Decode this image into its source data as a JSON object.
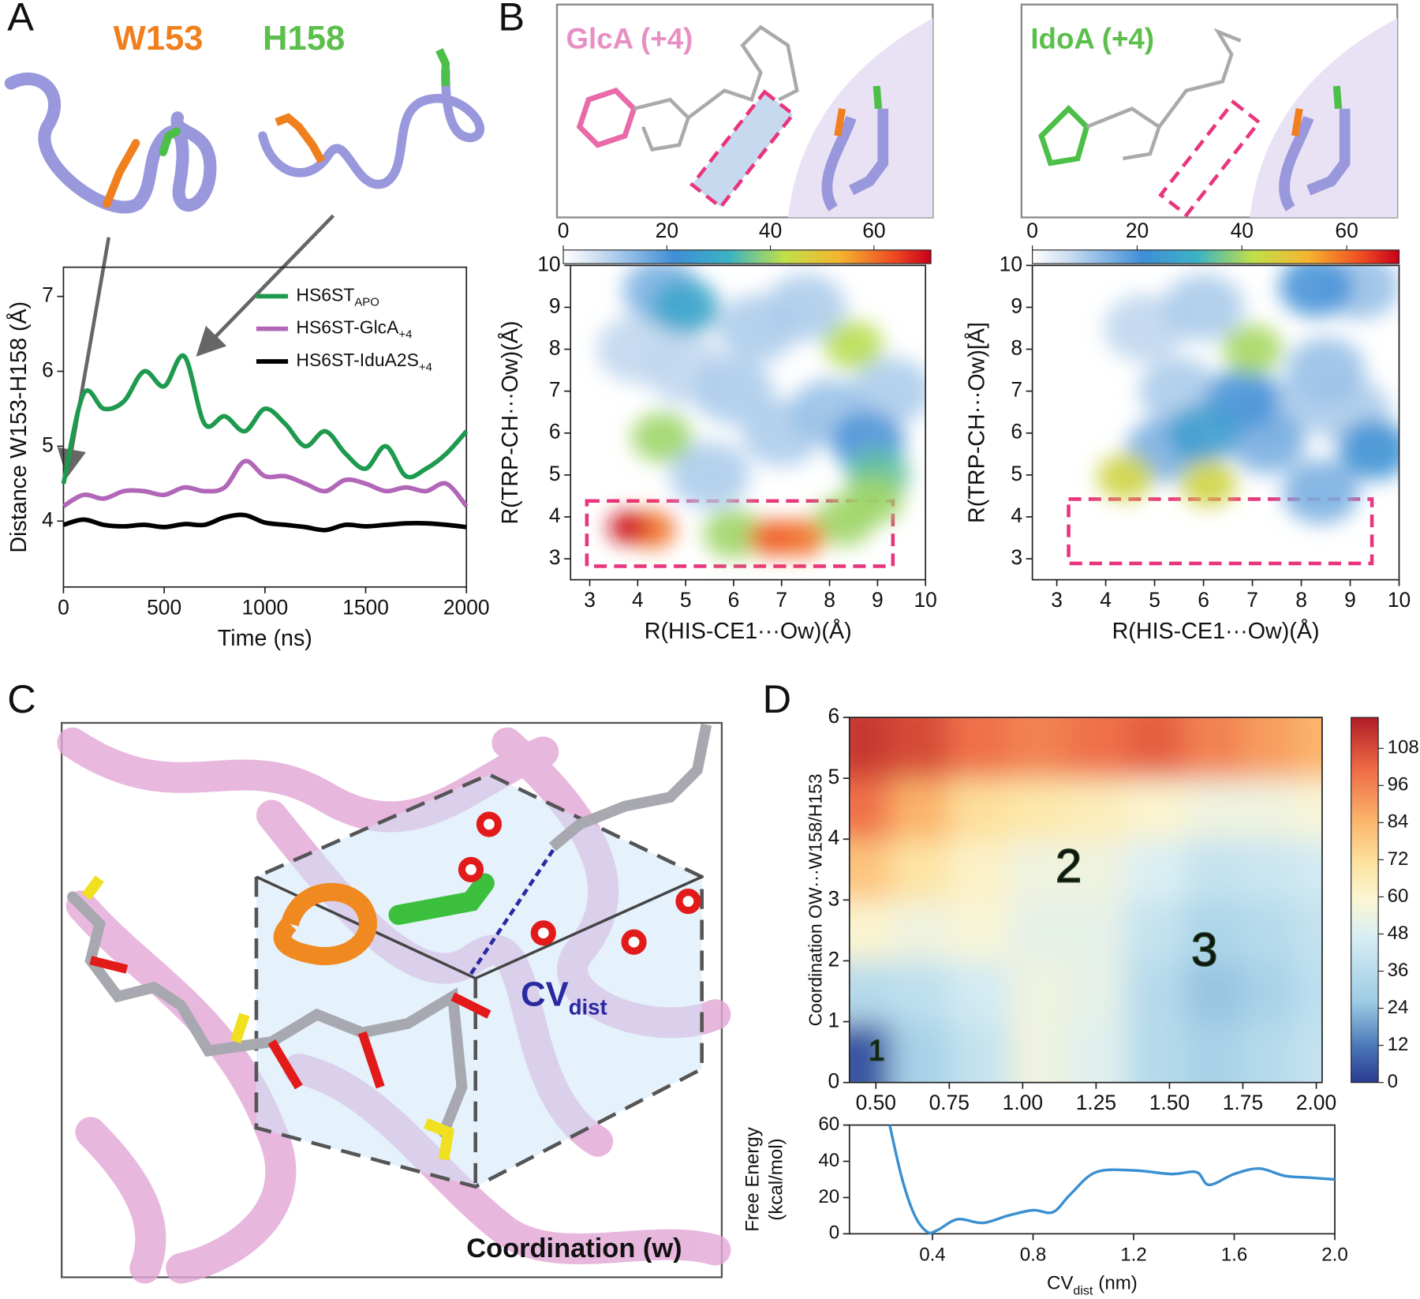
{
  "figure": {
    "panel_labels": [
      "A",
      "B",
      "C",
      "D"
    ],
    "residues": [
      "W153",
      "H158"
    ],
    "ligands": [
      "GlcA (+4)",
      "IdoA (+4)"
    ],
    "cv": {
      "text": "CV",
      "sub": "dist"
    },
    "coordination_label": "Coordination (w)"
  },
  "chart_data": [
    {
      "type": "line",
      "y_label": "Distance W153-H158 (Å)",
      "x_label": "Time (ns)",
      "legend": "upper right",
      "x": [
        0,
        100,
        200,
        300,
        400,
        500,
        600,
        700,
        800,
        900,
        1000,
        1100,
        1200,
        1300,
        1400,
        1500,
        1600,
        1700,
        1800,
        1900,
        2000
      ],
      "series": [
        {
          "name": "HS6ST",
          "name_sub": "APO",
          "color": "#1e9a4e",
          "values": [
            4.5,
            5.7,
            5.5,
            5.6,
            6.0,
            5.8,
            6.2,
            5.3,
            5.4,
            5.2,
            5.5,
            5.3,
            5.0,
            5.2,
            4.9,
            4.7,
            5.0,
            4.6,
            4.7,
            4.9,
            5.2
          ]
        },
        {
          "name": "HS6ST-GlcA",
          "name_sub": "+4",
          "color": "#b266b8",
          "values": [
            4.2,
            4.35,
            4.3,
            4.4,
            4.4,
            4.35,
            4.45,
            4.4,
            4.45,
            4.8,
            4.6,
            4.6,
            4.5,
            4.4,
            4.55,
            4.5,
            4.4,
            4.45,
            4.4,
            4.5,
            4.2
          ]
        },
        {
          "name": "HS6ST-IduA2S",
          "name_sub": "+4",
          "color": "#000000",
          "values": [
            3.95,
            4.02,
            3.95,
            3.93,
            3.95,
            3.92,
            3.96,
            3.95,
            4.05,
            4.08,
            3.98,
            3.95,
            3.92,
            3.88,
            3.95,
            3.93,
            3.95,
            3.97,
            3.97,
            3.95,
            3.92
          ]
        }
      ],
      "xlim": [
        0,
        2000
      ],
      "xticks": [
        0,
        500,
        1000,
        1500,
        2000
      ],
      "ylim": [
        3.12,
        7.39
      ],
      "yticks": [
        4,
        5,
        6,
        7
      ]
    },
    {
      "type": "density",
      "x_label": "R(HIS-CE1···Ow)(Å)",
      "y_label": "R(TRP-CH···Ow)(Å)",
      "colormap": "jet",
      "clim": [
        0,
        71
      ],
      "cticks": [
        0,
        20,
        40,
        60
      ],
      "points": {
        "x": [
          6.0,
          7.0,
          6.5,
          8.0,
          5.5,
          7.5,
          4.0,
          9.3,
          5.0,
          4.5,
          8.8,
          6.0,
          8.3,
          5.0,
          9.0,
          8.9,
          4.5,
          8.5,
          4.3,
          7.4,
          6.8,
          3.8
        ],
        "y": [
          7.0,
          6.0,
          8.5,
          6.5,
          5.0,
          9.0,
          8.0,
          7.0,
          7.5,
          9.4,
          5.8,
          3.6,
          3.9,
          9.0,
          5.0,
          4.4,
          5.9,
          8.1,
          3.7,
          3.5,
          3.5,
          3.75
        ],
        "values": [
          10,
          10,
          10,
          12,
          10,
          10,
          8,
          10,
          8,
          15,
          20,
          40,
          40,
          28,
          35,
          40,
          40,
          42,
          60,
          60,
          62,
          70
        ]
      },
      "xlim": [
        2.6,
        10
      ],
      "xticks": [
        3,
        4,
        5,
        6,
        7,
        8,
        9,
        10
      ],
      "ylim": [
        2.5,
        10
      ],
      "yticks": [
        3,
        4,
        5,
        6,
        7,
        8,
        9,
        10
      ]
    },
    {
      "type": "density",
      "x_label": "R(HIS-CE1···Ow)(Å)",
      "y_label": "R(TRP-CH···Ow)[Å]",
      "colormap": "jet",
      "clim": [
        0,
        70
      ],
      "cticks": [
        0,
        20,
        40,
        60
      ],
      "points": {
        "x": [
          5.5,
          6.0,
          4.8,
          7.5,
          9.0,
          8.5,
          9.2,
          8.4,
          5.2,
          7.3,
          6.8,
          8.3,
          9.5,
          6.0,
          7.0,
          4.4,
          6.1
        ],
        "y": [
          7.0,
          9.0,
          8.5,
          6.5,
          6.5,
          7.5,
          9.5,
          4.6,
          5.6,
          5.8,
          6.8,
          9.5,
          5.6,
          6.0,
          8.0,
          4.95,
          4.8
        ],
        "values": [
          10,
          10,
          8,
          10,
          10,
          12,
          12,
          15,
          15,
          15,
          20,
          20,
          22,
          25,
          40,
          45,
          45
        ]
      },
      "xlim": [
        2.5,
        10
      ],
      "xticks": [
        3,
        4,
        5,
        6,
        7,
        8,
        9,
        10
      ],
      "ylim": [
        2.5,
        10
      ],
      "yticks": [
        3,
        4,
        5,
        6,
        7,
        8,
        9,
        10
      ]
    },
    {
      "type": "contourf",
      "y_label": "Coordination OW···W158/H153",
      "colormap": "RdYlBu_r",
      "clim": [
        0,
        118
      ],
      "cticks": [
        0,
        12,
        24,
        36,
        48,
        60,
        72,
        84,
        96,
        108
      ],
      "annotations": [
        "1",
        "2",
        "3"
      ],
      "x": [
        0.45,
        0.65,
        0.85,
        1.05,
        1.25,
        1.45,
        1.65,
        1.85,
        2.0
      ],
      "y": [
        0.5,
        1.5,
        2.5,
        3.5,
        4.5,
        5.5
      ],
      "z": [
        [
          5,
          30,
          40,
          55,
          50,
          35,
          30,
          35,
          40
        ],
        [
          35,
          38,
          45,
          55,
          52,
          35,
          25,
          30,
          38
        ],
        [
          60,
          55,
          58,
          52,
          52,
          40,
          32,
          35,
          40
        ],
        [
          80,
          70,
          62,
          55,
          55,
          48,
          40,
          42,
          45
        ],
        [
          100,
          85,
          72,
          68,
          65,
          60,
          55,
          55,
          58
        ],
        [
          112,
          108,
          100,
          96,
          100,
          104,
          96,
          90,
          85
        ]
      ],
      "xlim": [
        0.41,
        2.02
      ],
      "xticks": [
        {
          "value": 0.5,
          "label": "0.50"
        },
        0.75,
        {
          "value": 1.0,
          "label": "1.00"
        },
        1.25,
        {
          "value": 1.5,
          "label": "1.50"
        },
        1.75,
        {
          "value": 2.0,
          "label": "2.00"
        }
      ],
      "ylim": [
        0,
        6
      ],
      "yticks": [
        0,
        1,
        2,
        3,
        4,
        5,
        6
      ]
    },
    {
      "type": "line",
      "y_label": [
        "Free Energy",
        "(kcal/mol)"
      ],
      "x_label": [
        "CV",
        "dist",
        "(nm)"
      ],
      "color": "#3a8fd0",
      "x": [
        0.23,
        0.28,
        0.33,
        0.38,
        0.42,
        0.5,
        0.6,
        0.7,
        0.8,
        0.88,
        0.95,
        1.05,
        1.2,
        1.35,
        1.45,
        1.5,
        1.6,
        1.7,
        1.8,
        1.9,
        2.0
      ],
      "values": [
        60,
        30,
        10,
        1,
        2,
        8,
        6,
        10,
        13,
        12,
        22,
        34,
        35,
        33,
        34,
        27,
        33,
        36,
        32,
        31,
        30
      ],
      "xlim": [
        0.07,
        2.0
      ],
      "xticks": [
        0.4,
        0.8,
        1.2,
        1.6,
        {
          "value": 2.0,
          "label": "2.0"
        }
      ],
      "ylim": [
        0,
        60
      ],
      "yticks": [
        0,
        20,
        40,
        60
      ]
    }
  ]
}
